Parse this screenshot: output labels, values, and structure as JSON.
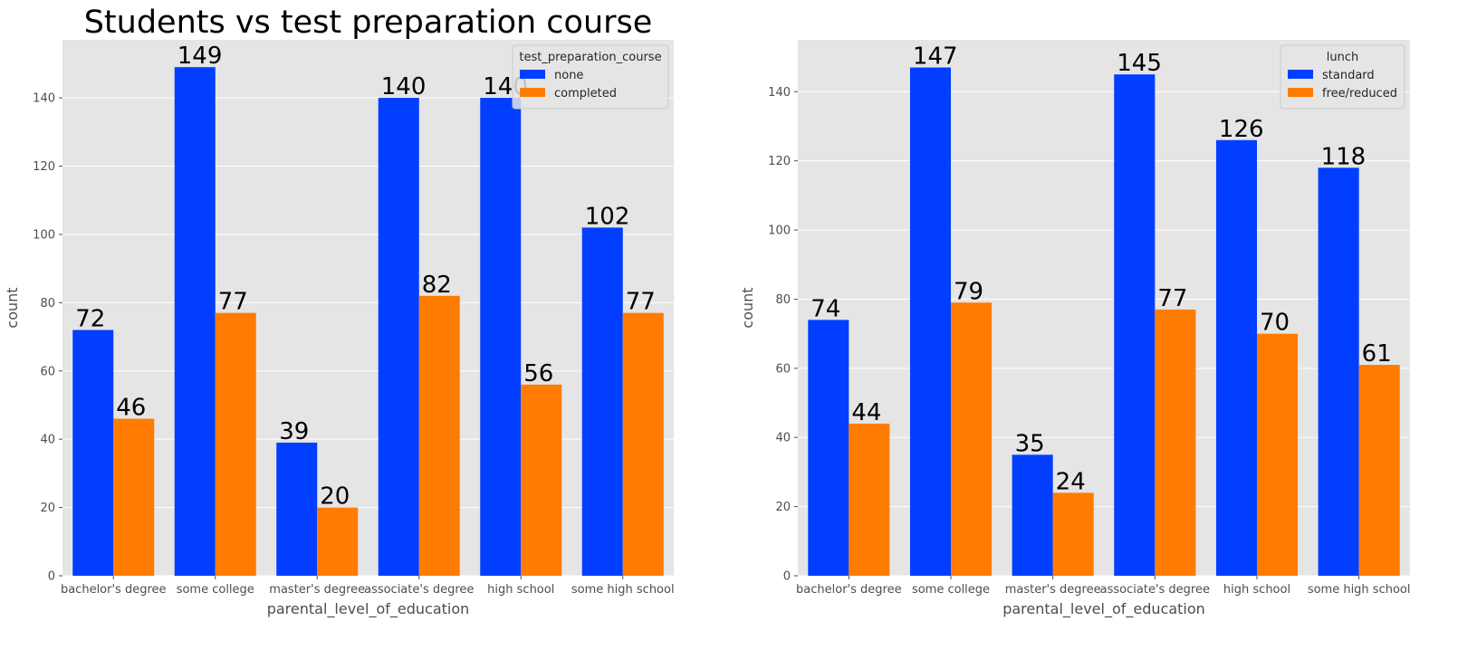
{
  "chart_data": [
    {
      "type": "bar",
      "title": "Students vs test preparation course",
      "xlabel": "parental_level_of_education",
      "ylabel": "count",
      "categories": [
        "bachelor's degree",
        "some college",
        "master's degree",
        "associate's degree",
        "high school",
        "some high school"
      ],
      "series": [
        {
          "name": "none",
          "color": "#023eff",
          "values": [
            72,
            149,
            39,
            140,
            140,
            102
          ]
        },
        {
          "name": "completed",
          "color": "#ff7c00",
          "values": [
            46,
            77,
            20,
            82,
            56,
            77
          ]
        }
      ],
      "ylim": [
        0,
        157
      ],
      "yticks": [
        0,
        20,
        40,
        60,
        80,
        100,
        120,
        140
      ],
      "legend": {
        "title": "test_preparation_course",
        "position": "top-right"
      },
      "grid": true,
      "background": "#e5e5e5"
    },
    {
      "type": "bar",
      "title": "",
      "xlabel": "parental_level_of_education",
      "ylabel": "count",
      "categories": [
        "bachelor's degree",
        "some college",
        "master's degree",
        "associate's degree",
        "high school",
        "some high school"
      ],
      "series": [
        {
          "name": "standard",
          "color": "#023eff",
          "values": [
            74,
            147,
            35,
            145,
            126,
            118
          ]
        },
        {
          "name": "free/reduced",
          "color": "#ff7c00",
          "values": [
            44,
            79,
            24,
            77,
            70,
            61
          ]
        }
      ],
      "ylim": [
        0,
        155
      ],
      "yticks": [
        0,
        20,
        40,
        60,
        80,
        100,
        120,
        140
      ],
      "legend": {
        "title": "lunch",
        "position": "top-right"
      },
      "grid": true,
      "background": "#e5e5e5"
    }
  ]
}
